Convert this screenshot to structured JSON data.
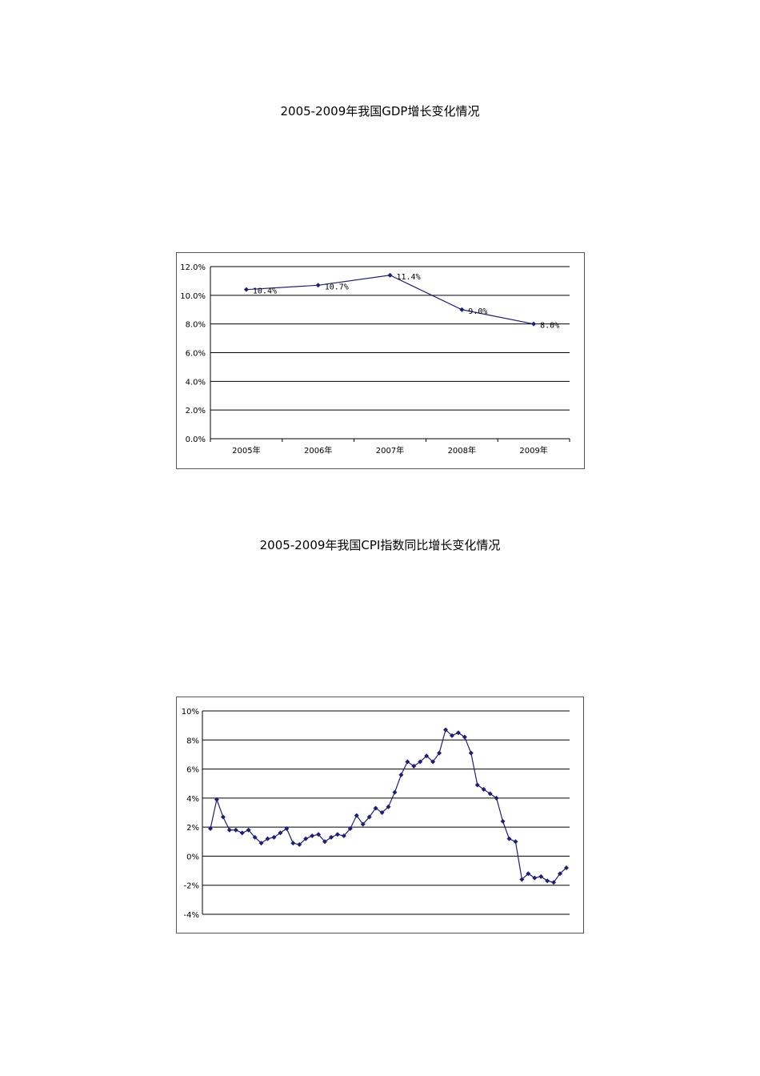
{
  "titles": {
    "gdp": "2005-2009年我国GDP增长变化情况",
    "cpi": "2005-2009年我国CPI指数同比增长变化情况"
  },
  "colors": {
    "series": "#1f1f7a",
    "grid": "#000000",
    "frame": "#555555"
  },
  "chart_data": [
    {
      "type": "line",
      "title": "2005-2009年我国GDP增长变化情况",
      "categories": [
        "2005年",
        "2006年",
        "2007年",
        "2008年",
        "2009年"
      ],
      "series": [
        {
          "values": [
            10.4,
            10.7,
            11.4,
            9.0,
            8.0
          ]
        }
      ],
      "data_labels": [
        "10.4%",
        "10.7%",
        "11.4%",
        "9.0%",
        "8.0%"
      ],
      "y_ticks": [
        "0.0%",
        "2.0%",
        "4.0%",
        "6.0%",
        "8.0%",
        "10.0%",
        "12.0%"
      ],
      "ylim": [
        0,
        12
      ],
      "grid": true,
      "legend": "none"
    },
    {
      "type": "line",
      "title": "2005-2009年我国CPI指数同比增长变化情况",
      "series": [
        {
          "values": [
            1.9,
            3.9,
            2.7,
            1.8,
            1.8,
            1.6,
            1.8,
            1.3,
            0.9,
            1.2,
            1.3,
            1.6,
            1.9,
            0.9,
            0.8,
            1.2,
            1.4,
            1.5,
            1.0,
            1.3,
            1.5,
            1.4,
            1.9,
            2.8,
            2.2,
            2.7,
            3.3,
            3.0,
            3.4,
            4.4,
            5.6,
            6.5,
            6.2,
            6.5,
            6.9,
            6.5,
            7.1,
            8.7,
            8.3,
            8.5,
            8.2,
            7.1,
            4.9,
            4.6,
            4.3,
            4.0,
            2.4,
            1.2,
            1.0,
            -1.6,
            -1.2,
            -1.5,
            -1.4,
            -1.7,
            -1.8,
            -1.2,
            -0.8
          ]
        }
      ],
      "y_ticks": [
        "-4%",
        "-2%",
        "0%",
        "2%",
        "4%",
        "6%",
        "8%",
        "10%"
      ],
      "ylim": [
        -4,
        10
      ],
      "grid": true,
      "legend": "none"
    }
  ]
}
